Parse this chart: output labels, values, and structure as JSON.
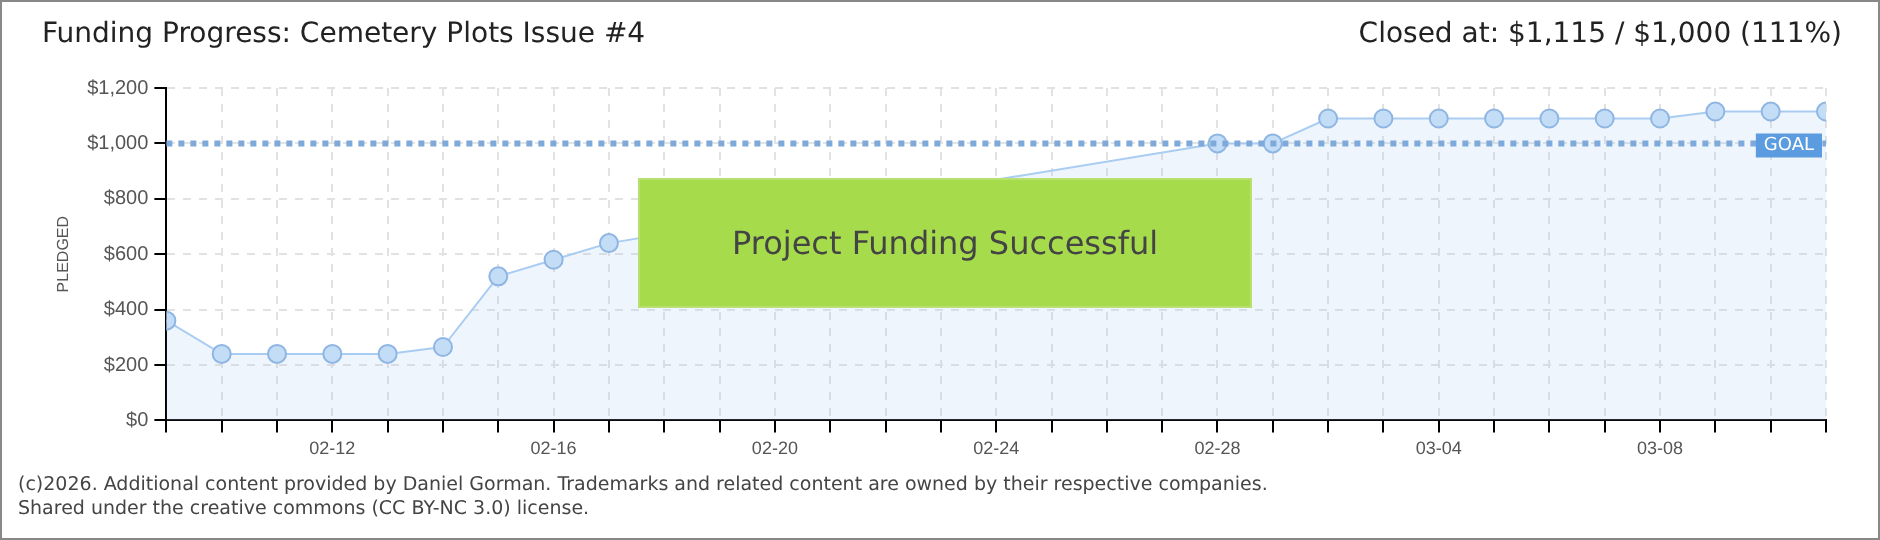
{
  "chart_data": {
    "type": "area",
    "title": "Funding Progress: Cemetery Plots Issue #4",
    "ylabel": "PLEDGED",
    "annotations": [
      "Closed at:  $1,115 /  $1,000 (111%)",
      "Project Funding Successful",
      "(c)2026. Additional content provided by Daniel Gorman. Trademarks and related content are owned by their respective companies.",
      "Shared under the creative commons (CC BY-NC 3.0) license."
    ],
    "x": [
      "--02-09",
      "--02-10",
      "--02-11",
      "--02-12",
      "--02-13",
      "--02-14",
      "--02-15",
      "--02-16",
      "--02-17",
      "--02-18",
      "--02-19",
      "--02-20",
      "--02-21",
      "--02-22",
      "--02-23",
      "--02-24",
      "--02-25",
      "--02-26",
      "--02-27",
      "--02-28",
      "--03-01",
      "--03-02",
      "--03-03",
      "--03-04",
      "--03-05",
      "--03-06",
      "--03-07",
      "--03-08",
      "--03-09",
      "--03-10",
      "--03-11"
    ],
    "series": [
      {
        "color": "#a9cdf2",
        "values": [
          360,
          240,
          240,
          240,
          240,
          265,
          520,
          580,
          640,
          null,
          null,
          null,
          null,
          null,
          null,
          null,
          null,
          null,
          null,
          1000,
          1000,
          1090,
          1090,
          1090,
          1090,
          1090,
          1090,
          1090,
          1115,
          1115,
          1115
        ]
      }
    ],
    "ylim": [
      0,
      1200
    ],
    "yticks": [
      {
        "value": 0,
        "label": "$0"
      },
      {
        "value": 200,
        "label": "$200"
      },
      {
        "value": 400,
        "label": "$400"
      },
      {
        "value": 600,
        "label": "$600"
      },
      {
        "value": 800,
        "label": "$800"
      },
      {
        "value": 1000,
        "label": "$1,000"
      },
      {
        "value": 1200,
        "label": "$1,200"
      }
    ],
    "xlim": [
      "--02-09",
      "--03-11"
    ],
    "xticks": [
      {
        "value": "--02-09",
        "label": null
      },
      {
        "value": "--02-10",
        "label": null
      },
      {
        "value": "--02-11",
        "label": null
      },
      {
        "value": "--02-12",
        "label": "02-12"
      },
      {
        "value": "--02-13",
        "label": null
      },
      {
        "value": "--02-14",
        "label": null
      },
      {
        "value": "--02-15",
        "label": null
      },
      {
        "value": "--02-16",
        "label": "02-16"
      },
      {
        "value": "--02-17",
        "label": null
      },
      {
        "value": "--02-18",
        "label": null
      },
      {
        "value": "--02-19",
        "label": null
      },
      {
        "value": "--02-20",
        "label": "02-20"
      },
      {
        "value": "--02-21",
        "label": null
      },
      {
        "value": "--02-22",
        "label": null
      },
      {
        "value": "--02-23",
        "label": null
      },
      {
        "value": "--02-24",
        "label": "02-24"
      },
      {
        "value": "--02-25",
        "label": null
      },
      {
        "value": "--02-26",
        "label": null
      },
      {
        "value": "--02-27",
        "label": null
      },
      {
        "value": "--02-28",
        "label": "02-28"
      },
      {
        "value": "--03-01",
        "label": null
      },
      {
        "value": "--03-02",
        "label": null
      },
      {
        "value": "--03-03",
        "label": null
      },
      {
        "value": "--03-04",
        "label": "03-04"
      },
      {
        "value": "--03-05",
        "label": null
      },
      {
        "value": "--03-06",
        "label": null
      },
      {
        "value": "--03-07",
        "label": null
      },
      {
        "value": "--03-08",
        "label": "03-08"
      },
      {
        "value": "--03-09",
        "label": null
      },
      {
        "value": "--03-10",
        "label": null
      },
      {
        "value": "--03-11",
        "label": null
      }
    ],
    "ref_lines": [
      {
        "axis": "y",
        "value": 1000,
        "label": "GOAL",
        "color": "#7fa9d9",
        "line_style": "dotted"
      }
    ],
    "grid": true,
    "legend": false,
    "marker": "circle",
    "line_style": "solid"
  }
}
